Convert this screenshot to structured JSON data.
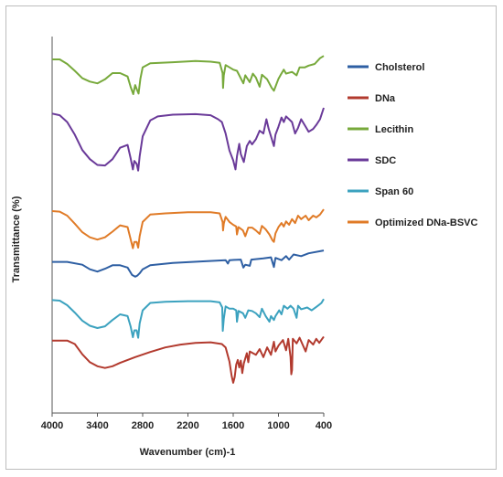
{
  "chart_data": {
    "type": "line",
    "xlabel": "Wavenumber (cm)-1",
    "ylabel": "Transmittance  (%)",
    "xlim": [
      4000,
      400
    ],
    "x_ticks": [
      4000,
      3400,
      2800,
      2200,
      1600,
      1000,
      400
    ],
    "legend_position": "right",
    "series": [
      {
        "name": "Cholsterol",
        "color": "#2e5fa3",
        "points": [
          [
            4000,
            26.5
          ],
          [
            3800,
            26.5
          ],
          [
            3600,
            26.0
          ],
          [
            3500,
            25.2
          ],
          [
            3400,
            24.8
          ],
          [
            3300,
            25.3
          ],
          [
            3200,
            25.9
          ],
          [
            3100,
            25.9
          ],
          [
            3000,
            25.5
          ],
          [
            2940,
            24.2
          ],
          [
            2900,
            23.9
          ],
          [
            2870,
            24.1
          ],
          [
            2840,
            24.5
          ],
          [
            2800,
            25.2
          ],
          [
            2700,
            25.9
          ],
          [
            2400,
            26.3
          ],
          [
            2000,
            26.6
          ],
          [
            1700,
            26.8
          ],
          [
            1670,
            26.2
          ],
          [
            1650,
            26.8
          ],
          [
            1500,
            26.9
          ],
          [
            1465,
            25.5
          ],
          [
            1440,
            26.0
          ],
          [
            1380,
            25.8
          ],
          [
            1360,
            26.9
          ],
          [
            1200,
            27.1
          ],
          [
            1100,
            27.3
          ],
          [
            1060,
            25.6
          ],
          [
            1040,
            27.2
          ],
          [
            960,
            26.8
          ],
          [
            900,
            27.5
          ],
          [
            860,
            26.9
          ],
          [
            800,
            27.8
          ],
          [
            700,
            27.5
          ],
          [
            600,
            28.0
          ],
          [
            400,
            28.5
          ]
        ]
      },
      {
        "name": "DNa",
        "color": "#b23a2e",
        "points": [
          [
            4000,
            12.7
          ],
          [
            3800,
            12.7
          ],
          [
            3700,
            12.1
          ],
          [
            3600,
            10.3
          ],
          [
            3500,
            8.9
          ],
          [
            3400,
            8.2
          ],
          [
            3300,
            7.9
          ],
          [
            3200,
            8.2
          ],
          [
            3100,
            8.8
          ],
          [
            2900,
            9.8
          ],
          [
            2700,
            10.7
          ],
          [
            2500,
            11.5
          ],
          [
            2300,
            12.0
          ],
          [
            2100,
            12.3
          ],
          [
            1900,
            12.4
          ],
          [
            1750,
            12.1
          ],
          [
            1700,
            11.5
          ],
          [
            1650,
            9.0
          ],
          [
            1620,
            6.5
          ],
          [
            1600,
            5.3
          ],
          [
            1580,
            6.3
          ],
          [
            1560,
            8.5
          ],
          [
            1540,
            9.3
          ],
          [
            1520,
            8.0
          ],
          [
            1500,
            9.2
          ],
          [
            1480,
            7.0
          ],
          [
            1460,
            8.7
          ],
          [
            1420,
            10.5
          ],
          [
            1400,
            8.9
          ],
          [
            1380,
            10.8
          ],
          [
            1300,
            10.2
          ],
          [
            1250,
            11.2
          ],
          [
            1200,
            9.8
          ],
          [
            1150,
            11.5
          ],
          [
            1100,
            10.2
          ],
          [
            1060,
            12.5
          ],
          [
            1040,
            10.8
          ],
          [
            1000,
            11.8
          ],
          [
            940,
            12.8
          ],
          [
            900,
            11.0
          ],
          [
            870,
            13.0
          ],
          [
            840,
            9.8
          ],
          [
            830,
            6.8
          ],
          [
            820,
            7.5
          ],
          [
            810,
            13.0
          ],
          [
            760,
            12.2
          ],
          [
            720,
            13.2
          ],
          [
            640,
            10.8
          ],
          [
            600,
            12.8
          ],
          [
            540,
            12.0
          ],
          [
            500,
            13.0
          ],
          [
            460,
            12.3
          ],
          [
            400,
            13.4
          ]
        ]
      },
      {
        "name": "Lecithin",
        "color": "#77a93b",
        "points": [
          [
            4000,
            62.0
          ],
          [
            3900,
            62.0
          ],
          [
            3800,
            61.2
          ],
          [
            3700,
            60.0
          ],
          [
            3600,
            58.7
          ],
          [
            3500,
            58.1
          ],
          [
            3400,
            57.8
          ],
          [
            3300,
            58.5
          ],
          [
            3200,
            59.6
          ],
          [
            3100,
            59.6
          ],
          [
            3000,
            59.0
          ],
          [
            2960,
            57.2
          ],
          [
            2925,
            55.9
          ],
          [
            2900,
            57.5
          ],
          [
            2870,
            56.5
          ],
          [
            2854,
            56.0
          ],
          [
            2830,
            58.6
          ],
          [
            2800,
            60.6
          ],
          [
            2700,
            61.3
          ],
          [
            2400,
            61.5
          ],
          [
            2100,
            61.7
          ],
          [
            1900,
            61.6
          ],
          [
            1780,
            61.4
          ],
          [
            1740,
            59.6
          ],
          [
            1735,
            57.0
          ],
          [
            1725,
            59.2
          ],
          [
            1700,
            61.0
          ],
          [
            1650,
            60.6
          ],
          [
            1600,
            60.2
          ],
          [
            1550,
            60.0
          ],
          [
            1465,
            57.8
          ],
          [
            1440,
            59.2
          ],
          [
            1380,
            58.0
          ],
          [
            1340,
            59.5
          ],
          [
            1300,
            58.8
          ],
          [
            1250,
            57.2
          ],
          [
            1220,
            59.3
          ],
          [
            1150,
            58.5
          ],
          [
            1090,
            57.0
          ],
          [
            1060,
            56.5
          ],
          [
            1040,
            57.2
          ],
          [
            1000,
            58.6
          ],
          [
            970,
            59.3
          ],
          [
            930,
            60.2
          ],
          [
            900,
            59.5
          ],
          [
            820,
            59.8
          ],
          [
            760,
            59.2
          ],
          [
            720,
            60.6
          ],
          [
            650,
            60.6
          ],
          [
            600,
            60.9
          ],
          [
            520,
            61.2
          ],
          [
            450,
            62.2
          ],
          [
            400,
            62.6
          ]
        ]
      },
      {
        "name": "SDC",
        "color": "#6a3a99",
        "points": [
          [
            4000,
            52.5
          ],
          [
            3900,
            52.2
          ],
          [
            3800,
            51.0
          ],
          [
            3700,
            48.8
          ],
          [
            3600,
            46.1
          ],
          [
            3500,
            44.5
          ],
          [
            3400,
            43.5
          ],
          [
            3300,
            43.4
          ],
          [
            3200,
            44.5
          ],
          [
            3100,
            46.5
          ],
          [
            3000,
            47.0
          ],
          [
            2960,
            44.7
          ],
          [
            2930,
            42.7
          ],
          [
            2910,
            44.2
          ],
          [
            2880,
            43.7
          ],
          [
            2860,
            42.5
          ],
          [
            2840,
            45.0
          ],
          [
            2800,
            48.5
          ],
          [
            2700,
            51.3
          ],
          [
            2600,
            52.0
          ],
          [
            2400,
            52.3
          ],
          [
            2100,
            52.4
          ],
          [
            1900,
            52.2
          ],
          [
            1800,
            51.5
          ],
          [
            1750,
            51.0
          ],
          [
            1700,
            49.0
          ],
          [
            1650,
            46.0
          ],
          [
            1600,
            44.3
          ],
          [
            1570,
            42.7
          ],
          [
            1550,
            45.0
          ],
          [
            1520,
            47.2
          ],
          [
            1500,
            45.4
          ],
          [
            1460,
            44.0
          ],
          [
            1420,
            46.8
          ],
          [
            1380,
            47.7
          ],
          [
            1350,
            47.1
          ],
          [
            1300,
            48.0
          ],
          [
            1250,
            49.5
          ],
          [
            1200,
            49.0
          ],
          [
            1160,
            51.5
          ],
          [
            1130,
            49.8
          ],
          [
            1100,
            48.5
          ],
          [
            1060,
            46.8
          ],
          [
            1040,
            48.8
          ],
          [
            1000,
            50.2
          ],
          [
            960,
            51.8
          ],
          [
            930,
            51.0
          ],
          [
            900,
            52.0
          ],
          [
            860,
            51.5
          ],
          [
            820,
            51.0
          ],
          [
            780,
            49.0
          ],
          [
            740,
            50.0
          ],
          [
            700,
            51.5
          ],
          [
            640,
            50.2
          ],
          [
            600,
            49.3
          ],
          [
            540,
            49.8
          ],
          [
            500,
            50.5
          ],
          [
            450,
            51.5
          ],
          [
            400,
            53.5
          ]
        ]
      },
      {
        "name": "Span 60",
        "color": "#3ca2bf",
        "points": [
          [
            4000,
            19.8
          ],
          [
            3900,
            19.7
          ],
          [
            3800,
            18.9
          ],
          [
            3700,
            17.6
          ],
          [
            3600,
            16.2
          ],
          [
            3500,
            15.3
          ],
          [
            3400,
            14.9
          ],
          [
            3300,
            15.2
          ],
          [
            3200,
            16.3
          ],
          [
            3100,
            17.3
          ],
          [
            3000,
            17.0
          ],
          [
            2960,
            15.2
          ],
          [
            2930,
            13.3
          ],
          [
            2910,
            14.5
          ],
          [
            2880,
            14.5
          ],
          [
            2860,
            13.2
          ],
          [
            2840,
            15.7
          ],
          [
            2800,
            18.0
          ],
          [
            2700,
            19.3
          ],
          [
            2500,
            19.5
          ],
          [
            2200,
            19.6
          ],
          [
            1900,
            19.6
          ],
          [
            1780,
            19.4
          ],
          [
            1745,
            18.5
          ],
          [
            1738,
            14.4
          ],
          [
            1725,
            16.5
          ],
          [
            1700,
            18.7
          ],
          [
            1650,
            18.3
          ],
          [
            1600,
            18.3
          ],
          [
            1560,
            18.0
          ],
          [
            1550,
            16.0
          ],
          [
            1530,
            17.9
          ],
          [
            1470,
            17.5
          ],
          [
            1440,
            16.7
          ],
          [
            1400,
            18.0
          ],
          [
            1350,
            17.9
          ],
          [
            1300,
            17.5
          ],
          [
            1250,
            16.8
          ],
          [
            1220,
            18.3
          ],
          [
            1170,
            17.0
          ],
          [
            1120,
            16.0
          ],
          [
            1100,
            17.0
          ],
          [
            1060,
            16.3
          ],
          [
            1040,
            17.0
          ],
          [
            990,
            18.0
          ],
          [
            960,
            17.3
          ],
          [
            930,
            18.8
          ],
          [
            880,
            18.3
          ],
          [
            840,
            18.8
          ],
          [
            800,
            18.3
          ],
          [
            760,
            16.7
          ],
          [
            740,
            18.8
          ],
          [
            700,
            18.2
          ],
          [
            620,
            18.5
          ],
          [
            560,
            18.0
          ],
          [
            500,
            18.6
          ],
          [
            460,
            19.0
          ],
          [
            430,
            19.3
          ],
          [
            400,
            20.0
          ]
        ]
      },
      {
        "name": "Optimized DNa-BSVC",
        "color": "#e07b27",
        "points": [
          [
            4000,
            35.4
          ],
          [
            3900,
            35.3
          ],
          [
            3800,
            34.6
          ],
          [
            3700,
            33.2
          ],
          [
            3600,
            31.7
          ],
          [
            3500,
            30.8
          ],
          [
            3400,
            30.4
          ],
          [
            3300,
            30.8
          ],
          [
            3200,
            31.8
          ],
          [
            3100,
            32.9
          ],
          [
            3000,
            32.6
          ],
          [
            2960,
            30.5
          ],
          [
            2930,
            28.9
          ],
          [
            2910,
            30.0
          ],
          [
            2880,
            30.0
          ],
          [
            2860,
            29.0
          ],
          [
            2840,
            31.0
          ],
          [
            2800,
            33.5
          ],
          [
            2700,
            34.8
          ],
          [
            2500,
            35.0
          ],
          [
            2200,
            35.2
          ],
          [
            1900,
            35.2
          ],
          [
            1780,
            35.0
          ],
          [
            1740,
            33.5
          ],
          [
            1735,
            32.0
          ],
          [
            1725,
            33.2
          ],
          [
            1700,
            34.4
          ],
          [
            1650,
            33.5
          ],
          [
            1600,
            33.0
          ],
          [
            1560,
            32.7
          ],
          [
            1550,
            31.3
          ],
          [
            1530,
            32.6
          ],
          [
            1470,
            32.0
          ],
          [
            1440,
            31.0
          ],
          [
            1400,
            32.5
          ],
          [
            1350,
            32.5
          ],
          [
            1300,
            32.0
          ],
          [
            1250,
            31.4
          ],
          [
            1220,
            32.8
          ],
          [
            1170,
            32.2
          ],
          [
            1120,
            31.3
          ],
          [
            1080,
            30.3
          ],
          [
            1060,
            30.0
          ],
          [
            1040,
            31.5
          ],
          [
            1000,
            32.6
          ],
          [
            960,
            33.3
          ],
          [
            930,
            32.7
          ],
          [
            900,
            33.6
          ],
          [
            860,
            33.0
          ],
          [
            820,
            34.0
          ],
          [
            780,
            33.3
          ],
          [
            740,
            34.6
          ],
          [
            700,
            34.0
          ],
          [
            640,
            34.6
          ],
          [
            600,
            33.8
          ],
          [
            540,
            34.6
          ],
          [
            500,
            34.3
          ],
          [
            450,
            34.8
          ],
          [
            400,
            35.7
          ]
        ]
      }
    ]
  }
}
